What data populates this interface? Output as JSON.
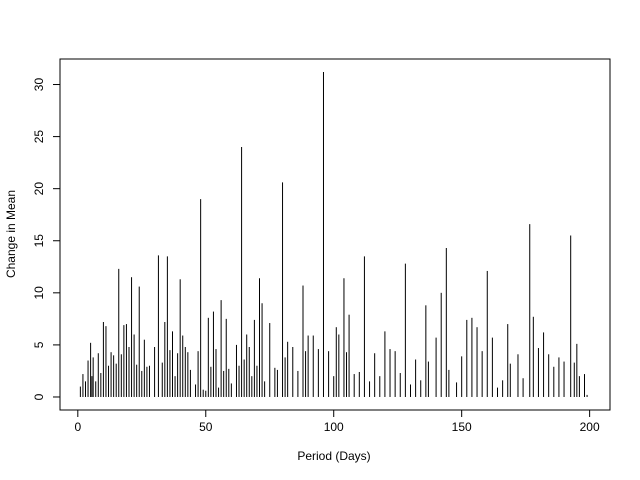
{
  "chart_data": {
    "type": "histogram-lines",
    "x_label": "Period (Days)",
    "y_label": "Change in Mean",
    "color": "#000000",
    "x": [
      1,
      2,
      3,
      4,
      5,
      5.5,
      6,
      7,
      8,
      9,
      10,
      11,
      12,
      13,
      14,
      15,
      16,
      17,
      18,
      19,
      20,
      21,
      22,
      23,
      24,
      25,
      26,
      27,
      28,
      30,
      31.5,
      33,
      34,
      35,
      36,
      37,
      38,
      39,
      40,
      41,
      42,
      43,
      44,
      46,
      47,
      48,
      49,
      50,
      51,
      52,
      53,
      54,
      55,
      56,
      57,
      58,
      59,
      60,
      62,
      63,
      64,
      65,
      66,
      67,
      68,
      69,
      70,
      71,
      72,
      73,
      75,
      77,
      78,
      80,
      81,
      82,
      84,
      86,
      88,
      89,
      90,
      92,
      94,
      96,
      98,
      100,
      101,
      102,
      104,
      105,
      106,
      108,
      110,
      112,
      114,
      116,
      118,
      120,
      122,
      124,
      126,
      128,
      130,
      132,
      134,
      136,
      137,
      140,
      142,
      144,
      145,
      148,
      150,
      152,
      154,
      156,
      158,
      160,
      162,
      164,
      166,
      168,
      169,
      172,
      174,
      176.6,
      178,
      180,
      182,
      184,
      186,
      188,
      190,
      192.6,
      194,
      195,
      196,
      198,
      199
    ],
    "values": [
      1.0,
      2.2,
      1.5,
      3.5,
      5.2,
      2.0,
      3.8,
      1.5,
      4.2,
      2.3,
      7.2,
      6.8,
      3.0,
      4.3,
      4.0,
      3.2,
      12.3,
      4.1,
      6.9,
      7.0,
      4.8,
      11.5,
      6.0,
      3.1,
      10.6,
      2.5,
      5.5,
      2.9,
      3.0,
      4.8,
      13.6,
      3.3,
      7.2,
      13.5,
      4.5,
      6.3,
      2.0,
      4.2,
      11.3,
      5.9,
      4.8,
      4.3,
      2.6,
      1.2,
      4.4,
      19.0,
      0.7,
      0.6,
      7.6,
      2.9,
      8.2,
      4.6,
      0.9,
      9.3,
      2.5,
      7.5,
      2.7,
      1.3,
      5.0,
      3.0,
      24.0,
      3.6,
      6.0,
      4.8,
      2.0,
      7.4,
      3.0,
      11.4,
      9.0,
      1.5,
      7.1,
      2.8,
      2.6,
      20.6,
      3.8,
      5.3,
      4.8,
      2.5,
      10.7,
      4.4,
      5.9,
      5.9,
      4.6,
      31.2,
      4.4,
      2.0,
      6.7,
      6.0,
      11.4,
      4.3,
      7.9,
      2.2,
      2.4,
      13.5,
      1.5,
      4.2,
      2.0,
      6.3,
      4.6,
      4.4,
      2.3,
      12.8,
      1.2,
      3.6,
      1.6,
      8.8,
      3.4,
      5.7,
      10.0,
      14.3,
      2.6,
      1.4,
      3.9,
      7.4,
      7.6,
      6.7,
      4.4,
      12.1,
      5.7,
      0.9,
      1.6,
      7.0,
      3.2,
      4.1,
      1.8,
      16.6,
      7.7,
      4.7,
      6.2,
      4.1,
      2.9,
      3.8,
      3.4,
      15.5,
      3.3,
      5.1,
      2.0,
      2.2,
      0.2
    ],
    "xlim": [
      -6.96,
      207.96
    ],
    "xticks": [
      0,
      50,
      100,
      150,
      200
    ],
    "ylim": [
      -1.25,
      32.45
    ],
    "yticks": [
      0,
      5,
      10,
      15,
      20,
      25,
      30
    ]
  }
}
